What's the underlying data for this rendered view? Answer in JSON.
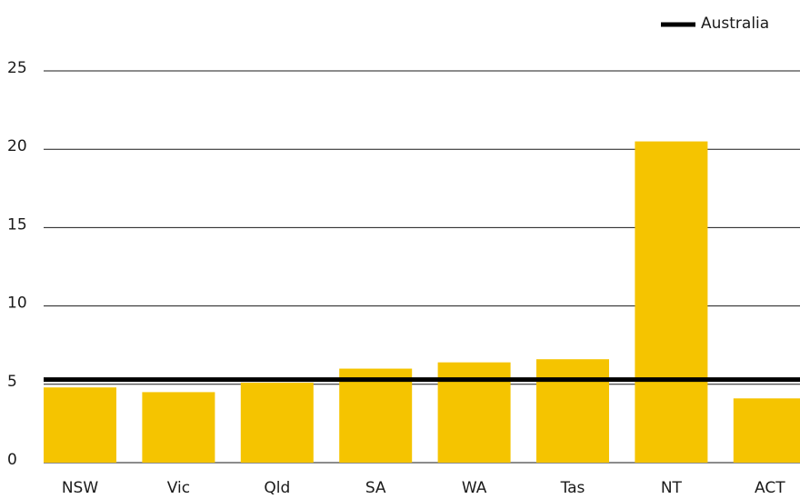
{
  "chart_data": {
    "type": "bar",
    "categories": [
      "NSW",
      "Vic",
      "Qld",
      "SA",
      "WA",
      "Tas",
      "NT",
      "ACT"
    ],
    "values": [
      4.8,
      4.5,
      5.1,
      6.0,
      6.4,
      6.6,
      20.5,
      4.1
    ],
    "color": "#f5c400",
    "ylim": [
      0,
      25
    ],
    "yticks": [
      0,
      5,
      10,
      15,
      20,
      25
    ],
    "grid": true,
    "reference_line": {
      "name": "Australia",
      "value": 5.3,
      "color": "#000000"
    },
    "legend": "top-right"
  }
}
